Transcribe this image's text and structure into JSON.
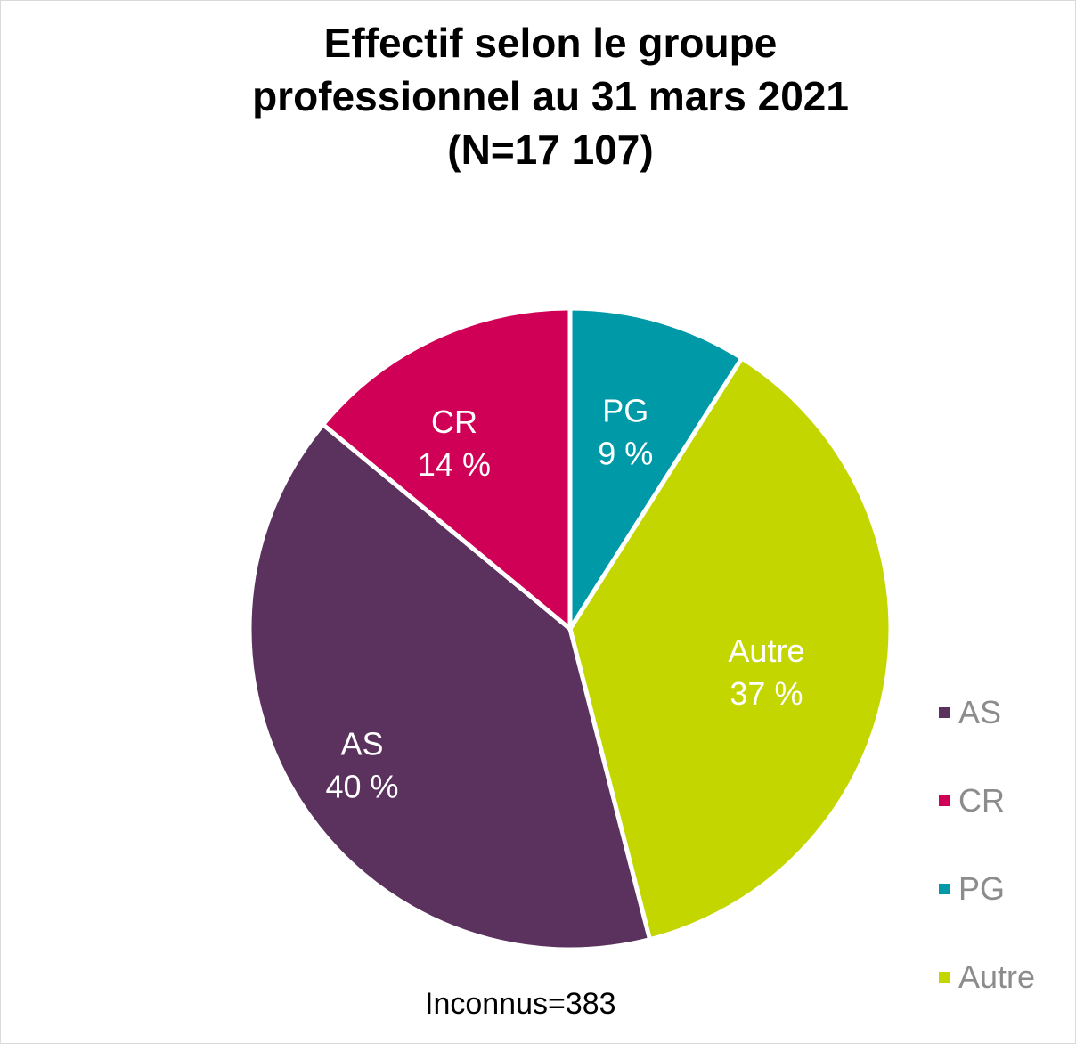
{
  "title_lines": [
    "Effectif selon le groupe",
    "professionnel au 31 mars 2021",
    "(N=17 107)"
  ],
  "chart_data": {
    "type": "pie",
    "title": "Effectif selon le groupe professionnel au 31 mars 2021 (N=17 107)",
    "start_angle_deg": 0,
    "direction": "clockwise",
    "slices": [
      {
        "name": "PG",
        "value": 9,
        "label": "9 %",
        "color": "#0099a8"
      },
      {
        "name": "Autre",
        "value": 37,
        "label": "37 %",
        "color": "#c4d600"
      },
      {
        "name": "AS",
        "value": 40,
        "label": "40 %",
        "color": "#5b325e"
      },
      {
        "name": "CR",
        "value": 14,
        "label": "14 %",
        "color": "#d10057"
      }
    ],
    "legend_order": [
      "AS",
      "CR",
      "PG",
      "Autre"
    ],
    "legend_position": "right",
    "footnote": "Inconnus=383"
  },
  "legend": {
    "items": [
      {
        "label": "AS",
        "color": "#5b325e"
      },
      {
        "label": "CR",
        "color": "#d10057"
      },
      {
        "label": "PG",
        "color": "#0099a8"
      },
      {
        "label": "Autre",
        "color": "#c4d600"
      }
    ]
  },
  "footnote": "Inconnus=383"
}
